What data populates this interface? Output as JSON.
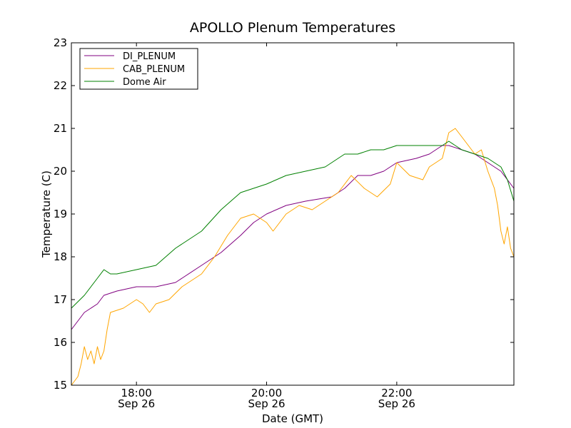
{
  "chart_data": {
    "type": "line",
    "title": "APOLLO Plenum Temperatures",
    "xlabel": "Date (GMT)",
    "ylabel": "Temperature (C)",
    "xlim": [
      17.0,
      23.8
    ],
    "ylim": [
      15,
      23
    ],
    "yticks": [
      15,
      16,
      17,
      18,
      19,
      20,
      21,
      22,
      23
    ],
    "xticks": [
      {
        "value": 18.0,
        "time": "18:00",
        "date": "Sep 26"
      },
      {
        "value": 20.0,
        "time": "20:00",
        "date": "Sep 26"
      },
      {
        "value": 22.0,
        "time": "22:00",
        "date": "Sep 26"
      }
    ],
    "legend_position": "top-left",
    "series": [
      {
        "name": "DI_PLENUM",
        "color": "#800080",
        "x": [
          17.0,
          17.2,
          17.4,
          17.5,
          17.7,
          18.0,
          18.3,
          18.6,
          19.0,
          19.3,
          19.6,
          19.8,
          20.0,
          20.3,
          20.6,
          21.0,
          21.2,
          21.4,
          21.6,
          21.8,
          22.0,
          22.3,
          22.5,
          22.6,
          22.7,
          22.8,
          23.0,
          23.2,
          23.4,
          23.6,
          23.8
        ],
        "values": [
          16.3,
          16.7,
          16.9,
          17.1,
          17.2,
          17.3,
          17.3,
          17.4,
          17.8,
          18.1,
          18.5,
          18.8,
          19.0,
          19.2,
          19.3,
          19.4,
          19.6,
          19.9,
          19.9,
          20.0,
          20.2,
          20.3,
          20.4,
          20.5,
          20.6,
          20.6,
          20.5,
          20.4,
          20.2,
          20.0,
          19.6
        ]
      },
      {
        "name": "CAB_PLENUM",
        "color": "#FFA500",
        "x": [
          17.0,
          17.1,
          17.15,
          17.2,
          17.25,
          17.3,
          17.35,
          17.4,
          17.45,
          17.5,
          17.55,
          17.6,
          17.8,
          18.0,
          18.1,
          18.2,
          18.3,
          18.5,
          18.7,
          19.0,
          19.2,
          19.4,
          19.6,
          19.8,
          20.0,
          20.1,
          20.3,
          20.5,
          20.7,
          20.9,
          21.1,
          21.3,
          21.5,
          21.7,
          21.9,
          22.0,
          22.2,
          22.4,
          22.5,
          22.7,
          22.8,
          22.9,
          23.0,
          23.1,
          23.2,
          23.3,
          23.4,
          23.5,
          23.55,
          23.6,
          23.65,
          23.7,
          23.75,
          23.8
        ],
        "values": [
          15.0,
          15.2,
          15.5,
          15.9,
          15.6,
          15.8,
          15.5,
          15.9,
          15.6,
          15.8,
          16.3,
          16.7,
          16.8,
          17.0,
          16.9,
          16.7,
          16.9,
          17.0,
          17.3,
          17.6,
          18.0,
          18.5,
          18.9,
          19.0,
          18.8,
          18.6,
          19.0,
          19.2,
          19.1,
          19.3,
          19.5,
          19.9,
          19.6,
          19.4,
          19.7,
          20.2,
          19.9,
          19.8,
          20.1,
          20.3,
          20.9,
          21.0,
          20.8,
          20.6,
          20.4,
          20.5,
          20.0,
          19.6,
          19.2,
          18.6,
          18.3,
          18.7,
          18.2,
          18.0
        ]
      },
      {
        "name": "Dome Air",
        "color": "#008000",
        "x": [
          17.0,
          17.2,
          17.4,
          17.5,
          17.6,
          17.7,
          18.0,
          18.3,
          18.6,
          19.0,
          19.3,
          19.6,
          19.8,
          20.0,
          20.3,
          20.6,
          20.9,
          21.2,
          21.4,
          21.6,
          21.8,
          22.0,
          22.3,
          22.5,
          22.7,
          22.8,
          22.9,
          23.0,
          23.2,
          23.4,
          23.5,
          23.6,
          23.7,
          23.8
        ],
        "values": [
          16.8,
          17.1,
          17.5,
          17.7,
          17.6,
          17.6,
          17.7,
          17.8,
          18.2,
          18.6,
          19.1,
          19.5,
          19.6,
          19.7,
          19.9,
          20.0,
          20.1,
          20.4,
          20.4,
          20.5,
          20.5,
          20.6,
          20.6,
          20.6,
          20.6,
          20.7,
          20.6,
          20.5,
          20.4,
          20.3,
          20.2,
          20.1,
          19.8,
          19.3
        ]
      }
    ]
  }
}
